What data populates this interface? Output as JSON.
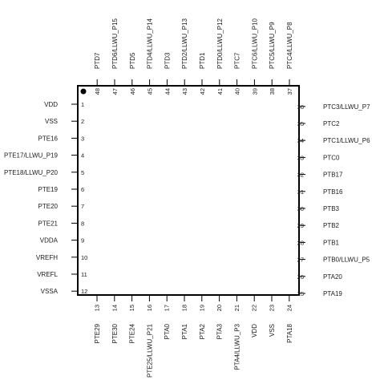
{
  "chip": {
    "pins": {
      "left": [
        {
          "num": "1",
          "name": "VDD"
        },
        {
          "num": "2",
          "name": "VSS"
        },
        {
          "num": "3",
          "name": "PTE16"
        },
        {
          "num": "4",
          "name": "PTE17/LLWU_P19"
        },
        {
          "num": "5",
          "name": "PTE18/LLWU_P20"
        },
        {
          "num": "6",
          "name": "PTE19"
        },
        {
          "num": "7",
          "name": "PTE20"
        },
        {
          "num": "8",
          "name": "PTE21"
        },
        {
          "num": "9",
          "name": "VDDA"
        },
        {
          "num": "10",
          "name": "VREFH"
        },
        {
          "num": "11",
          "name": "VREFL"
        },
        {
          "num": "12",
          "name": "VSSA"
        }
      ],
      "bottom": [
        {
          "num": "13",
          "name": "PTE29"
        },
        {
          "num": "14",
          "name": "PTE30"
        },
        {
          "num": "15",
          "name": "PTE24"
        },
        {
          "num": "16",
          "name": "PTE25/LLWU_P21"
        },
        {
          "num": "17",
          "name": "PTA0"
        },
        {
          "num": "18",
          "name": "PTA1"
        },
        {
          "num": "19",
          "name": "PTA2"
        },
        {
          "num": "20",
          "name": "PTA3"
        },
        {
          "num": "21",
          "name": "PTA4/LLWU_P3"
        },
        {
          "num": "22",
          "name": "VDD"
        },
        {
          "num": "23",
          "name": "VSS"
        },
        {
          "num": "24",
          "name": "PTA18"
        }
      ],
      "right": [
        {
          "num": "25",
          "name": "PTA19"
        },
        {
          "num": "26",
          "name": "PTA20"
        },
        {
          "num": "27",
          "name": "PTB0/LLWU_P5"
        },
        {
          "num": "28",
          "name": "PTB1"
        },
        {
          "num": "29",
          "name": "PTB2"
        },
        {
          "num": "30",
          "name": "PTB3"
        },
        {
          "num": "31",
          "name": "PTB16"
        },
        {
          "num": "32",
          "name": "PTB17"
        },
        {
          "num": "33",
          "name": "PTC0"
        },
        {
          "num": "34",
          "name": "PTC1/LLWU_P6"
        },
        {
          "num": "35",
          "name": "PTC2"
        },
        {
          "num": "36",
          "name": "PTC3/LLWU_P7"
        }
      ],
      "top": [
        {
          "num": "37",
          "name": "PTC4/LLWU_P8"
        },
        {
          "num": "38",
          "name": "PTC5/LLWU_P9"
        },
        {
          "num": "39",
          "name": "PTC6/LLWU_P10"
        },
        {
          "num": "40",
          "name": "PTC7"
        },
        {
          "num": "41",
          "name": "PTD0/LLWU_P12"
        },
        {
          "num": "42",
          "name": "PTD1"
        },
        {
          "num": "43",
          "name": "PTD2/LLWU_P13"
        },
        {
          "num": "44",
          "name": "PTD3"
        },
        {
          "num": "45",
          "name": "PTD4/LLWU_P14"
        },
        {
          "num": "46",
          "name": "PTD5"
        },
        {
          "num": "47",
          "name": "PTD6/LLWU_P15"
        },
        {
          "num": "48",
          "name": "PTD7"
        }
      ]
    }
  }
}
